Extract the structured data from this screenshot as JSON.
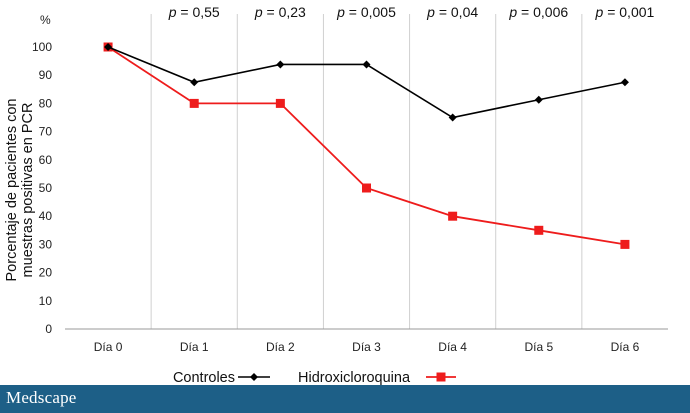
{
  "chart_data": {
    "type": "line",
    "categories": [
      "Día 0",
      "Día 1",
      "Día 2",
      "Día 3",
      "Día 4",
      "Día 5",
      "Día 6"
    ],
    "series": [
      {
        "name": "Controles",
        "values": [
          100,
          87.5,
          93.8,
          93.8,
          75,
          81.3,
          87.5
        ],
        "color": "#000000",
        "marker": "diamond"
      },
      {
        "name": "Hidroxicloroquina",
        "values": [
          100,
          80,
          80,
          50,
          40,
          35,
          30
        ],
        "color": "#ee1c1c",
        "marker": "square"
      }
    ],
    "p_values": [
      "p = 0,55",
      "p = 0,23",
      "p = 0,005",
      "p = 0,04",
      "p = 0,006",
      "p = 0,001"
    ],
    "y_unit": "%",
    "ylabel_line1": "Porcentaje de pacientes con",
    "ylabel_line2": "muestras positivas en PCR",
    "ylim": [
      0,
      100
    ],
    "yticks": [
      "0",
      "10",
      "20",
      "30",
      "40",
      "50",
      "60",
      "70",
      "80",
      "90",
      "100"
    ],
    "grid": "vertical separators between categories",
    "legend_position": "bottom-center"
  },
  "footer": {
    "brand": "Medscape",
    "bg_color": "#1d5f87"
  }
}
